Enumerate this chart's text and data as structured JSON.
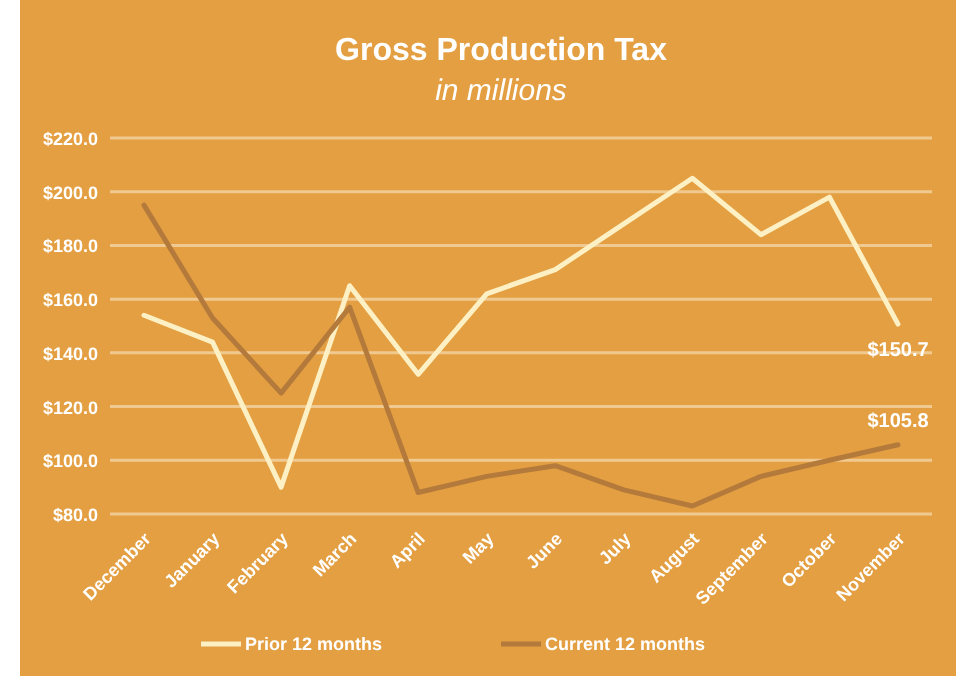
{
  "chart_data": {
    "type": "line",
    "title": "Gross Production Tax",
    "subtitle": "in millions",
    "categories": [
      "December",
      "January",
      "February",
      "March",
      "April",
      "May",
      "June",
      "July",
      "August",
      "September",
      "October",
      "November"
    ],
    "series": [
      {
        "name": "Prior 12 months",
        "color": "#fdf0c4",
        "values": [
          154,
          144,
          90,
          165,
          132,
          162,
          171,
          188,
          205,
          184,
          198,
          150.7
        ],
        "value_labels": [
          null,
          null,
          null,
          null,
          null,
          null,
          null,
          null,
          null,
          null,
          null,
          "$150.7"
        ]
      },
      {
        "name": "Current 12 months",
        "color": "#b47a3c",
        "values": [
          195,
          153,
          125,
          157,
          88,
          94,
          98,
          89,
          83,
          94,
          100,
          105.8
        ],
        "value_labels": [
          null,
          null,
          null,
          null,
          null,
          null,
          null,
          null,
          null,
          null,
          null,
          "$105.8"
        ]
      }
    ],
    "ylim": [
      80,
      220
    ],
    "yticks": [
      {
        "value": 80,
        "label": "$80.0"
      },
      {
        "value": 100,
        "label": "$100.0"
      },
      {
        "value": 120,
        "label": "$120.0"
      },
      {
        "value": 140,
        "label": "$140.0"
      },
      {
        "value": 160,
        "label": "$160.0"
      },
      {
        "value": 180,
        "label": "$180.0"
      },
      {
        "value": 200,
        "label": "$200.0"
      },
      {
        "value": 220,
        "label": "$220.0"
      }
    ],
    "grid": "y",
    "legend": "bottom",
    "marker": "none",
    "line_style": "solid"
  }
}
